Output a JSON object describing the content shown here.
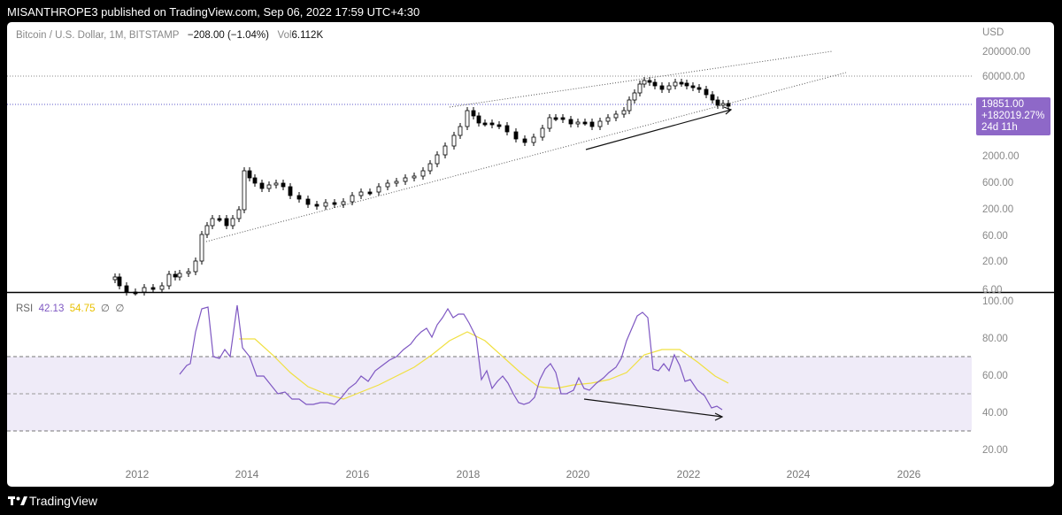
{
  "publication": {
    "text": "MISANTHROPE3 published on TradingView.com, Sep 06, 2022 17:59 UTC+4:30"
  },
  "footer": {
    "brand": "TradingView",
    "logo_icon": "tradingview-logo-icon"
  },
  "legend": {
    "symbol": "Bitcoin / U.S. Dollar, 1M, BITSTAMP",
    "change": "−208.00 (−1.04%)",
    "vol_label": "Vol",
    "vol_value": "6.112K"
  },
  "price_axis": {
    "currency": "USD",
    "ticks": [
      "200000.00",
      "60000.00",
      "2000.00",
      "600.00",
      "200.00",
      "60.00",
      "20.00",
      "6.00"
    ]
  },
  "price_badge": {
    "price": "19851.00",
    "change_pct": "+182019.27%",
    "countdown": "24d 11h",
    "color": "#8e68c8"
  },
  "rsi_panel": {
    "label": "RSI",
    "value": "42.13",
    "ma_value": "54.75",
    "extra1": "∅",
    "extra2": "∅",
    "ticks": [
      "100.00",
      "80.00",
      "60.00",
      "40.00",
      "20.00"
    ],
    "rsi_color": "#7e57c2",
    "ma_color": "#f0e040",
    "band_color": "#efebf8"
  },
  "time_axis": {
    "labels": [
      "2012",
      "2014",
      "2016",
      "2018",
      "2020",
      "2022",
      "2024",
      "2026"
    ]
  },
  "colors": {
    "up": "#ffffff",
    "down": "#000000",
    "outline": "#000000",
    "trendline": "#555555",
    "background": "#000000"
  }
}
